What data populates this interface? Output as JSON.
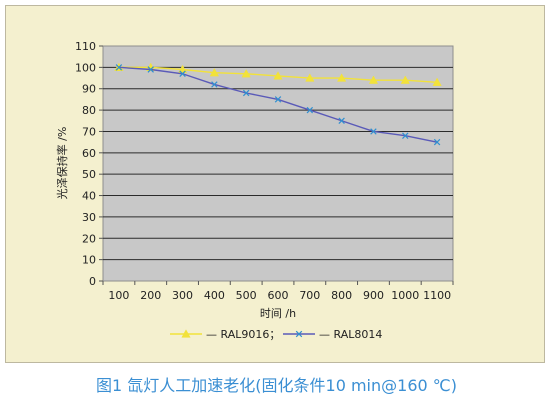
{
  "chart_data": {
    "type": "line",
    "xlabel": "时间 /h",
    "ylabel": "光泽保持率 /%",
    "x": [
      100,
      200,
      300,
      400,
      500,
      600,
      700,
      800,
      900,
      1000,
      1100
    ],
    "ylim": [
      0,
      110
    ],
    "yticks": [
      0,
      10,
      20,
      30,
      40,
      50,
      60,
      70,
      80,
      90,
      100,
      110
    ],
    "grid": "horizontal",
    "legend": "bottom",
    "series": [
      {
        "name": "RAL9016；",
        "legend_label": "— RAL9016；",
        "marker": "triangle",
        "color": "#f2e23a",
        "values": [
          100,
          100,
          99,
          97.5,
          97,
          96,
          95,
          95,
          94,
          94,
          93
        ]
      },
      {
        "name": "RAL8014",
        "legend_label": "— RAL8014",
        "marker": "x",
        "color": "#5a5ab8",
        "values": [
          100,
          99,
          97,
          92,
          88,
          85,
          80,
          75,
          70,
          68,
          65
        ]
      }
    ]
  },
  "caption": "图1 氙灯人工加速老化(固化条件10 min@160 ℃)"
}
